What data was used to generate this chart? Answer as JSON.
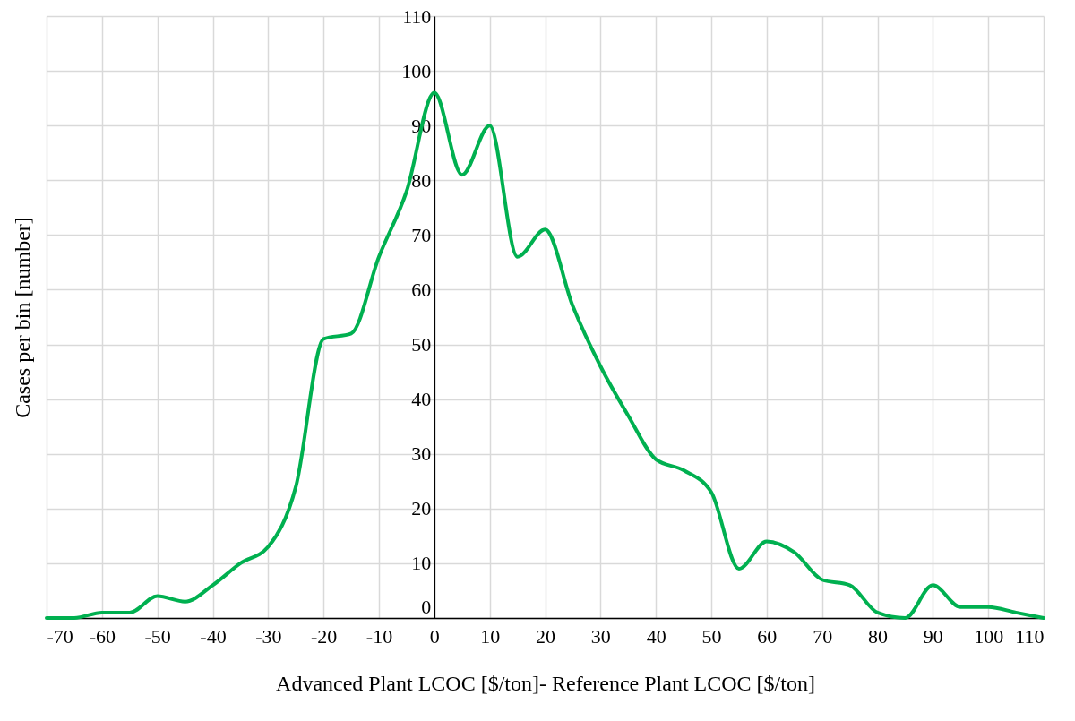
{
  "chart_data": {
    "type": "line",
    "xlabel": "Advanced Plant LCOC [$/ton]- Reference Plant LCOC [$/ton]",
    "ylabel": "Cases per bin [number]",
    "x": [
      -70,
      -65,
      -60,
      -55,
      -50,
      -45,
      -40,
      -35,
      -30,
      -25,
      -20,
      -15,
      -10,
      -5,
      0,
      5,
      10,
      15,
      20,
      25,
      30,
      35,
      40,
      45,
      50,
      55,
      60,
      65,
      70,
      75,
      80,
      85,
      90,
      95,
      100,
      105,
      110
    ],
    "series": [
      {
        "color": "#00b050",
        "values": [
          0,
          0,
          1,
          1,
          4,
          3,
          6,
          10,
          13,
          24,
          51,
          52,
          66,
          78,
          96,
          81,
          90,
          66,
          71,
          57,
          46,
          37,
          29,
          27,
          23,
          9,
          14,
          12,
          7,
          6,
          1,
          0,
          6,
          2,
          2,
          1,
          0
        ]
      }
    ],
    "xlim": [
      -70,
      110
    ],
    "ylim": [
      0,
      110
    ],
    "xticks": [
      -70,
      -60,
      -50,
      -40,
      -30,
      -20,
      -10,
      0,
      10,
      20,
      30,
      40,
      50,
      60,
      70,
      80,
      90,
      100,
      110
    ],
    "yticks": [
      0,
      10,
      20,
      30,
      40,
      50,
      60,
      70,
      80,
      90,
      100,
      110
    ],
    "grid": true,
    "marker": "none",
    "line_style": "solid"
  }
}
